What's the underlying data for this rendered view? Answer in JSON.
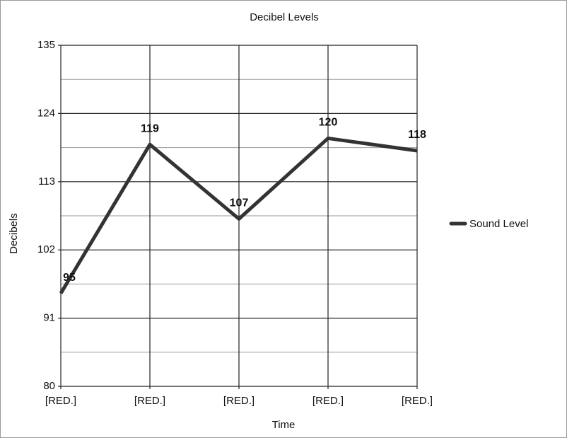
{
  "chart_data": {
    "type": "line",
    "title": "Decibel Levels",
    "x_label": "Time",
    "y_label": "Decibels",
    "categories": [
      "[RED.]",
      "[RED.]",
      "[RED.]",
      "[RED.]",
      "[RED.]"
    ],
    "series": [
      {
        "name": "Sound Level",
        "color": "#333333",
        "values": [
          95,
          119,
          107,
          120,
          118
        ]
      }
    ],
    "ylim": [
      80,
      135
    ],
    "yticks": [
      80,
      91,
      102,
      113,
      124,
      135
    ],
    "grid": true,
    "legend": "right"
  }
}
